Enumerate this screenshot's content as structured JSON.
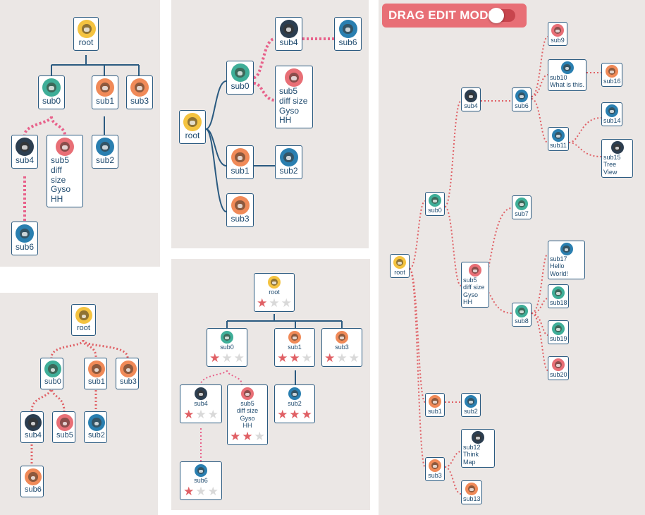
{
  "colors": {
    "link_solid": "#2a5a80",
    "link_dashed": "#e8628b",
    "link_dotted": "#e06065",
    "toggle_bg": "#e86f76",
    "star_on": "#e06065",
    "star_off": "#d9d9d9"
  },
  "avatars": {
    "dog": "#f4c340",
    "cheetah": "#3fae98",
    "deer": "#f08a58",
    "bull": "#f08a58",
    "goat": "#f08a58",
    "elephant": "#2c3e50",
    "panda": "#e86f76",
    "wolf": "#2a7fb0",
    "buffalo": "#2a7fb0",
    "rhino": "#f08a58",
    "mouse": "#e86f76",
    "owl": "#3fae98",
    "bear": "#2a7fb0",
    "donkey": "#2a7fb0",
    "lion": "#2c3e50",
    "pug": "#f08a58",
    "fox": "#3fae98",
    "sheep": "#3fae98",
    "ox": "#e86f76"
  },
  "labels": {
    "root": "root",
    "sub0": "sub0",
    "sub1": "sub1",
    "sub2": "sub2",
    "sub3": "sub3",
    "sub4": "sub4",
    "sub5": "sub5\ndiff size\nGyso\nHH",
    "sub5_short": "sub5",
    "sub6": "sub6",
    "sub7": "sub7",
    "sub8": "sub8",
    "sub9": "sub9",
    "sub10": "sub10\nWhat is this.",
    "sub11": "sub11",
    "sub12": "sub12\nThink Map",
    "sub13": "sub13",
    "sub14": "sub14",
    "sub15": "sub15\nTree View",
    "sub16": "sub16",
    "sub17": "sub17\nHello World!",
    "sub18": "sub18",
    "sub19": "sub19",
    "sub20": "sub20"
  },
  "ratings": {
    "root": 1,
    "sub0": 1,
    "sub1": 2,
    "sub3": 1,
    "sub4": 1,
    "sub5": 2,
    "sub2": 3,
    "sub6": 1,
    "max": 3
  },
  "drag_edit": {
    "label": "DRAG EDIT MODE",
    "enabled": false
  }
}
